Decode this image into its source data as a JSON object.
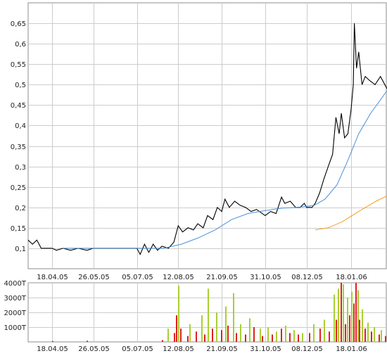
{
  "chart_data": [
    {
      "type": "line",
      "title": "",
      "xlabel": "",
      "ylabel": "",
      "ylim": [
        0.05,
        0.7
      ],
      "y_ticks": [
        "0,1",
        "0,15",
        "0,2",
        "0,25",
        "0,3",
        "0,35",
        "0,4",
        "0,45",
        "0,5",
        "0,55",
        "0,6",
        "0,65"
      ],
      "y_tick_values": [
        0.1,
        0.15,
        0.2,
        0.25,
        0.3,
        0.35,
        0.4,
        0.45,
        0.5,
        0.55,
        0.6,
        0.65
      ],
      "x_ticks": [
        "18.04.05",
        "26.05.05",
        "05.07.05",
        "12.08.05",
        "21.09.05",
        "31.10.05",
        "08.12.05",
        "18.01.06"
      ],
      "x_tick_dates": [
        "2005-04-18",
        "2005-05-26",
        "2005-07-05",
        "2005-08-12",
        "2005-09-21",
        "2005-10-31",
        "2005-12-08",
        "2006-01-18"
      ],
      "x_range": [
        "2005-03-27",
        "2006-02-20"
      ],
      "grid": true,
      "legend": "none",
      "series": [
        {
          "color": "#000000",
          "points": [
            [
              "2005-03-27",
              0.12
            ],
            [
              "2005-03-31",
              0.11
            ],
            [
              "2005-04-04",
              0.12
            ],
            [
              "2005-04-08",
              0.1
            ],
            [
              "2005-04-12",
              0.1
            ],
            [
              "2005-04-18",
              0.1
            ],
            [
              "2005-04-22",
              0.095
            ],
            [
              "2005-04-28",
              0.1
            ],
            [
              "2005-05-05",
              0.095
            ],
            [
              "2005-05-12",
              0.1
            ],
            [
              "2005-05-20",
              0.095
            ],
            [
              "2005-05-26",
              0.1
            ],
            [
              "2005-06-02",
              0.1
            ],
            [
              "2005-06-10",
              0.1
            ],
            [
              "2005-06-18",
              0.1
            ],
            [
              "2005-06-26",
              0.1
            ],
            [
              "2005-07-05",
              0.1
            ],
            [
              "2005-07-08",
              0.085
            ],
            [
              "2005-07-12",
              0.11
            ],
            [
              "2005-07-16",
              0.09
            ],
            [
              "2005-07-20",
              0.11
            ],
            [
              "2005-07-24",
              0.095
            ],
            [
              "2005-07-28",
              0.105
            ],
            [
              "2005-08-03",
              0.1
            ],
            [
              "2005-08-08",
              0.115
            ],
            [
              "2005-08-12",
              0.155
            ],
            [
              "2005-08-16",
              0.14
            ],
            [
              "2005-08-21",
              0.15
            ],
            [
              "2005-08-26",
              0.145
            ],
            [
              "2005-08-30",
              0.16
            ],
            [
              "2005-09-04",
              0.15
            ],
            [
              "2005-09-08",
              0.18
            ],
            [
              "2005-09-13",
              0.17
            ],
            [
              "2005-09-17",
              0.2
            ],
            [
              "2005-09-21",
              0.19
            ],
            [
              "2005-09-24",
              0.22
            ],
            [
              "2005-09-28",
              0.2
            ],
            [
              "2005-10-03",
              0.215
            ],
            [
              "2005-10-08",
              0.205
            ],
            [
              "2005-10-13",
              0.2
            ],
            [
              "2005-10-18",
              0.19
            ],
            [
              "2005-10-23",
              0.195
            ],
            [
              "2005-10-31",
              0.18
            ],
            [
              "2005-11-05",
              0.19
            ],
            [
              "2005-11-10",
              0.185
            ],
            [
              "2005-11-15",
              0.225
            ],
            [
              "2005-11-18",
              0.21
            ],
            [
              "2005-11-23",
              0.215
            ],
            [
              "2005-11-28",
              0.2
            ],
            [
              "2005-12-02",
              0.2
            ],
            [
              "2005-12-06",
              0.21
            ],
            [
              "2005-12-08",
              0.2
            ],
            [
              "2005-12-13",
              0.2
            ],
            [
              "2005-12-16",
              0.21
            ],
            [
              "2005-12-20",
              0.235
            ],
            [
              "2005-12-24",
              0.27
            ],
            [
              "2005-12-28",
              0.3
            ],
            [
              "2006-01-01",
              0.33
            ],
            [
              "2006-01-04",
              0.42
            ],
            [
              "2006-01-07",
              0.38
            ],
            [
              "2006-01-09",
              0.43
            ],
            [
              "2006-01-12",
              0.37
            ],
            [
              "2006-01-15",
              0.38
            ],
            [
              "2006-01-18",
              0.44
            ],
            [
              "2006-01-20",
              0.5
            ],
            [
              "2006-01-21",
              0.65
            ],
            [
              "2006-01-23",
              0.54
            ],
            [
              "2006-01-25",
              0.58
            ],
            [
              "2006-01-28",
              0.5
            ],
            [
              "2006-01-31",
              0.52
            ],
            [
              "2006-02-04",
              0.51
            ],
            [
              "2006-02-09",
              0.5
            ],
            [
              "2006-02-14",
              0.52
            ],
            [
              "2006-02-20",
              0.49
            ]
          ]
        },
        {
          "color": "#4a90d9",
          "points": [
            [
              "2005-04-28",
              0.1
            ],
            [
              "2005-06-05",
              0.1
            ],
            [
              "2005-07-15",
              0.1
            ],
            [
              "2005-07-30",
              0.1
            ],
            [
              "2005-08-15",
              0.11
            ],
            [
              "2005-08-30",
              0.125
            ],
            [
              "2005-09-15",
              0.145
            ],
            [
              "2005-09-30",
              0.17
            ],
            [
              "2005-10-15",
              0.185
            ],
            [
              "2005-10-31",
              0.192
            ],
            [
              "2005-11-15",
              0.198
            ],
            [
              "2005-11-30",
              0.2
            ],
            [
              "2005-12-15",
              0.205
            ],
            [
              "2005-12-25",
              0.22
            ],
            [
              "2006-01-05",
              0.255
            ],
            [
              "2006-01-15",
              0.315
            ],
            [
              "2006-01-25",
              0.38
            ],
            [
              "2006-02-05",
              0.43
            ],
            [
              "2006-02-20",
              0.485
            ]
          ]
        },
        {
          "color": "#f0a020",
          "points": [
            [
              "2005-12-16",
              0.145
            ],
            [
              "2005-12-28",
              0.15
            ],
            [
              "2006-01-10",
              0.165
            ],
            [
              "2006-01-25",
              0.19
            ],
            [
              "2006-02-10",
              0.215
            ],
            [
              "2006-02-20",
              0.228
            ]
          ]
        }
      ]
    },
    {
      "type": "bar",
      "title": "",
      "xlabel": "",
      "ylabel": "",
      "ylim": [
        0,
        4000
      ],
      "y_ticks": [
        "1000T",
        "2000T",
        "3000T",
        "4000T"
      ],
      "y_tick_values": [
        1000,
        2000,
        3000,
        4000
      ],
      "x_ticks": [
        "18.04.05",
        "26.05.05",
        "05.07.05",
        "12.08.05",
        "21.09.05",
        "31.10.05",
        "08.12.05",
        "18.01.06"
      ],
      "x_tick_dates": [
        "2005-04-18",
        "2005-05-26",
        "2005-07-05",
        "2005-08-12",
        "2005-09-21",
        "2005-10-31",
        "2005-12-08",
        "2006-01-18"
      ],
      "x_range": [
        "2005-03-27",
        "2006-02-20"
      ],
      "grid": true,
      "legend": "none",
      "series": [
        {
          "color": "#e02020",
          "points": [
            [
              "2005-04-18",
              60
            ],
            [
              "2005-05-20",
              80
            ],
            [
              "2005-07-28",
              120
            ],
            [
              "2005-08-08",
              600
            ],
            [
              "2005-08-10",
              1800
            ],
            [
              "2005-08-14",
              900
            ],
            [
              "2005-08-20",
              400
            ],
            [
              "2005-08-28",
              700
            ],
            [
              "2005-09-05",
              500
            ],
            [
              "2005-09-12",
              900
            ],
            [
              "2005-09-20",
              800
            ],
            [
              "2005-09-26",
              1100
            ],
            [
              "2005-10-04",
              600
            ],
            [
              "2005-10-12",
              500
            ],
            [
              "2005-10-20",
              1000
            ],
            [
              "2005-10-28",
              400
            ],
            [
              "2005-11-06",
              500
            ],
            [
              "2005-11-14",
              900
            ],
            [
              "2005-11-22",
              600
            ],
            [
              "2005-11-30",
              500
            ],
            [
              "2005-12-10",
              600
            ],
            [
              "2005-12-20",
              900
            ],
            [
              "2005-12-28",
              700
            ],
            [
              "2006-01-04",
              1500
            ],
            [
              "2006-01-08",
              4000
            ],
            [
              "2006-01-12",
              1200
            ],
            [
              "2006-01-16",
              1800
            ],
            [
              "2006-01-20",
              2600
            ],
            [
              "2006-01-22",
              4000
            ],
            [
              "2006-01-25",
              1500
            ],
            [
              "2006-01-30",
              900
            ],
            [
              "2006-02-05",
              700
            ],
            [
              "2006-02-12",
              500
            ],
            [
              "2006-02-18",
              400
            ]
          ]
        },
        {
          "color": "#a8d030",
          "points": [
            [
              "2005-08-02",
              900
            ],
            [
              "2005-08-12",
              3800
            ],
            [
              "2005-08-22",
              1200
            ],
            [
              "2005-09-02",
              1800
            ],
            [
              "2005-09-08",
              3600
            ],
            [
              "2005-09-16",
              2000
            ],
            [
              "2005-09-24",
              2400
            ],
            [
              "2005-10-01",
              3300
            ],
            [
              "2005-10-08",
              1200
            ],
            [
              "2005-10-16",
              1600
            ],
            [
              "2005-10-26",
              900
            ],
            [
              "2005-11-02",
              1000
            ],
            [
              "2005-11-10",
              700
            ],
            [
              "2005-11-18",
              1100
            ],
            [
              "2005-11-26",
              800
            ],
            [
              "2005-12-04",
              600
            ],
            [
              "2005-12-14",
              1200
            ],
            [
              "2005-12-24",
              1500
            ],
            [
              "2006-01-02",
              3200
            ],
            [
              "2006-01-06",
              3600
            ],
            [
              "2006-01-10",
              3900
            ],
            [
              "2006-01-14",
              3000
            ],
            [
              "2006-01-18",
              3400
            ],
            [
              "2006-01-24",
              3500
            ],
            [
              "2006-01-28",
              2200
            ],
            [
              "2006-02-02",
              1300
            ],
            [
              "2006-02-08",
              1000
            ],
            [
              "2006-02-14",
              800
            ],
            [
              "2006-02-20",
              1400
            ]
          ]
        }
      ]
    }
  ]
}
